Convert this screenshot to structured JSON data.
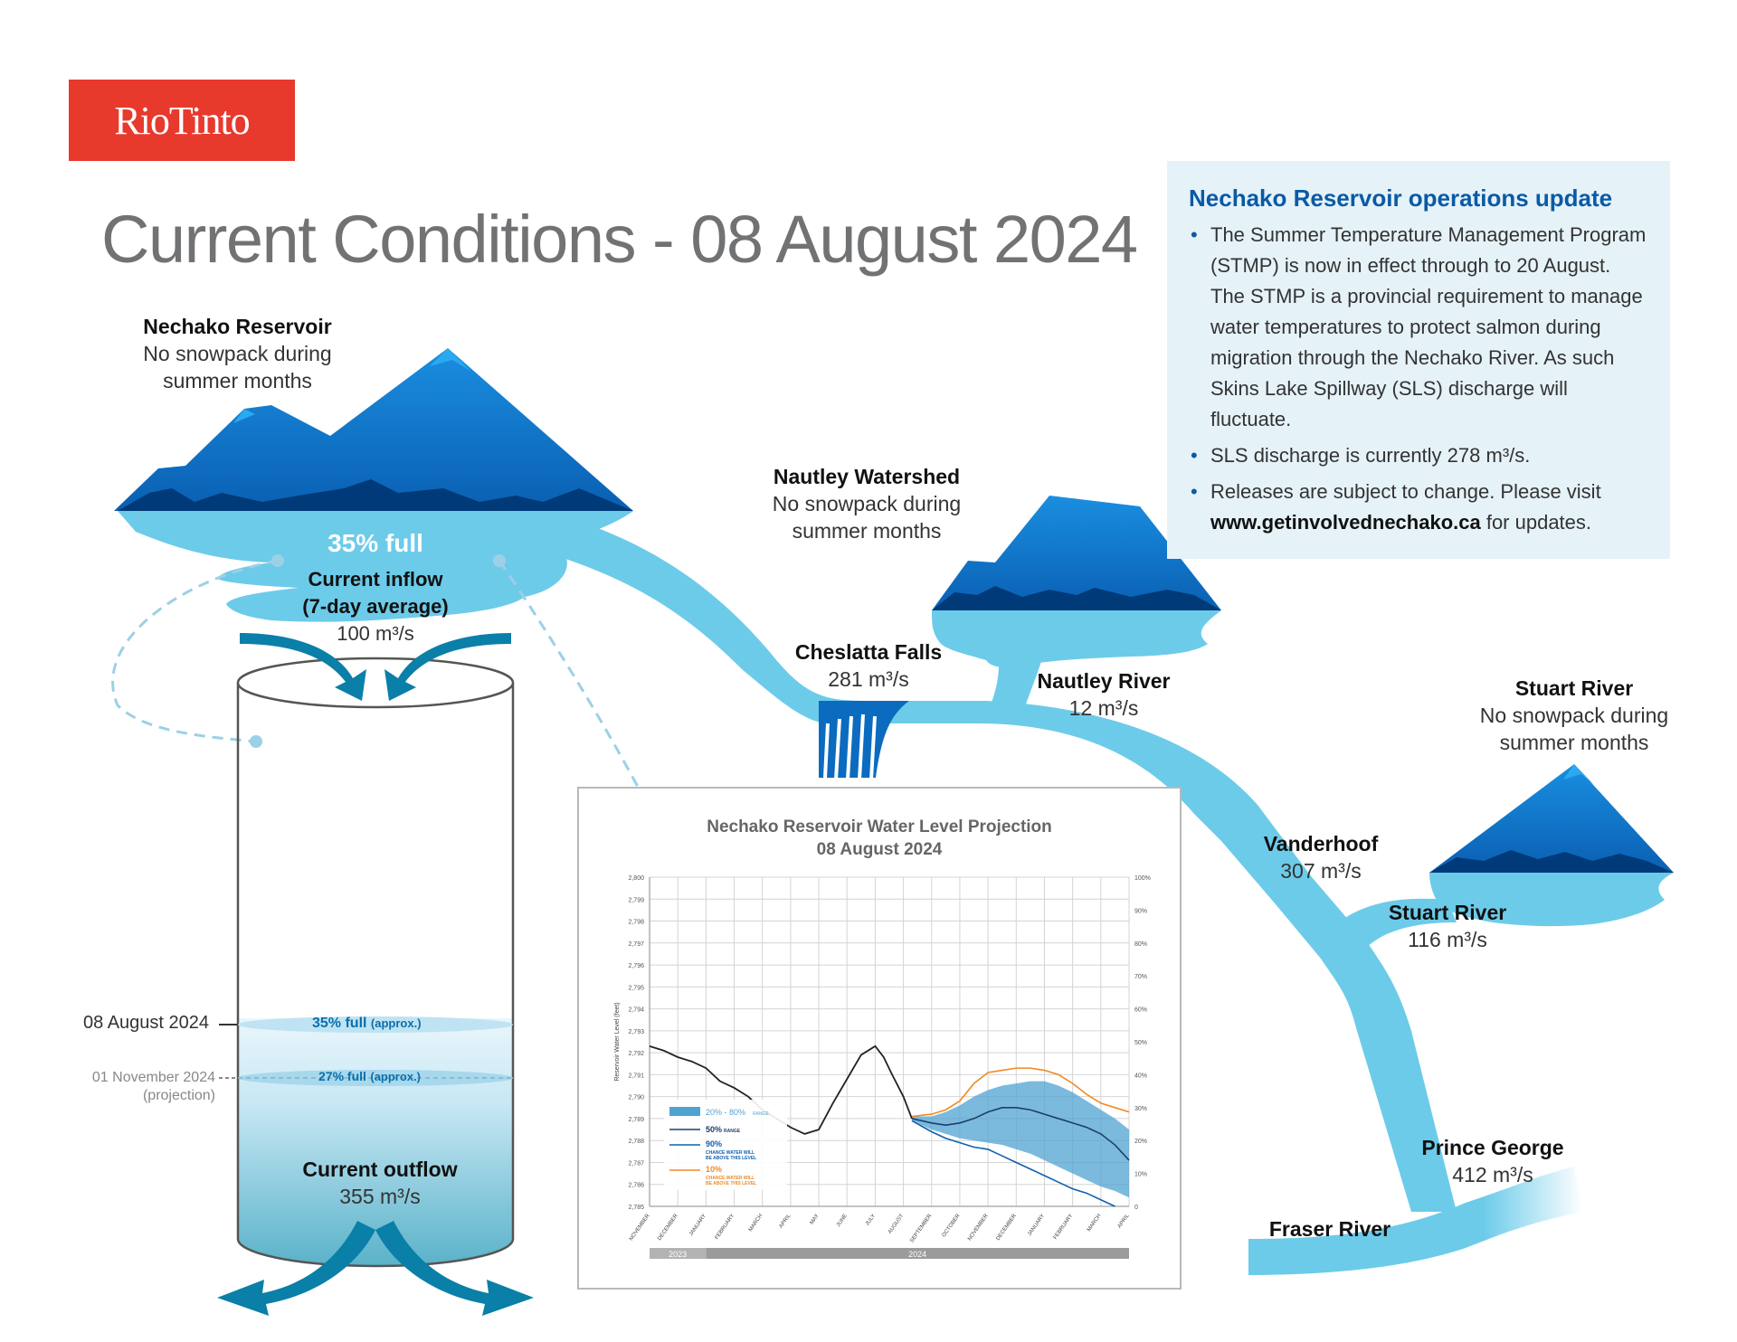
{
  "logo": {
    "text": "RioTinto"
  },
  "title": "Current Conditions - 08 August 2024",
  "nechako_reservoir": {
    "title": "Nechako Reservoir",
    "line1": "No snowpack during",
    "line2": "summer months"
  },
  "reservoir": {
    "percent_full": "35% full",
    "inflow_title": "Current inflow",
    "inflow_sub": "(7-day average)",
    "inflow_value": "100 m³/s",
    "outflow_title": "Current outflow",
    "outflow_value": "355 m³/s",
    "current_date": "08 August 2024",
    "current_level": "35% full",
    "current_level_note": "(approx.)",
    "projection_date": "01 November 2024",
    "projection_note": "(projection)",
    "projection_level": "27% full",
    "projection_level_note": "(approx.)",
    "current_fraction": 0.35,
    "projection_fraction": 0.27
  },
  "nautley_watershed": {
    "title": "Nautley Watershed",
    "line1": "No snowpack during",
    "line2": "summer months"
  },
  "cheslatta_falls": {
    "title": "Cheslatta Falls",
    "value": "281 m³/s"
  },
  "nautley_river": {
    "title": "Nautley River",
    "value": "12 m³/s"
  },
  "stuart_watershed": {
    "title": "Stuart River",
    "line1": "No snowpack during",
    "line2": "summer months"
  },
  "vanderhoof": {
    "title": "Vanderhoof",
    "value": "307 m³/s"
  },
  "stuart_river": {
    "title": "Stuart River",
    "value": "116 m³/s"
  },
  "prince_george": {
    "title": "Prince George",
    "value": "412 m³/s"
  },
  "fraser_river": {
    "title": "Fraser River"
  },
  "info": {
    "heading": "Nechako Reservoir operations update",
    "bullet1": "The Summer Temperature Management Program (STMP) is now in effect through to 20 August. The STMP is a provincial requirement to manage water temperatures to protect salmon during migration through the Nechako River. As such Skins Lake Spillway (SLS) discharge will fluctuate.",
    "bullet2": "SLS discharge is currently 278 m³/s.",
    "bullet3_pre": "Releases are subject to change. Please visit ",
    "bullet3_link": "www.getinvolvednechako.ca",
    "bullet3_post": " for updates."
  },
  "colors": {
    "river": "#6ccbe9",
    "mountain_light": "#0b6bbf",
    "mountain_dark": "#003a78",
    "accent_red": "#e8392d",
    "band": "#4fa3d1",
    "median": "#1c3f6b",
    "p90": "#1060b0",
    "p10": "#f08a22"
  },
  "chart_data": {
    "type": "line",
    "title": "Nechako Reservoir Water Level Projection",
    "subtitle": "08 August 2024",
    "ylabel": "Reservoir Water Level (feet)",
    "ylim": [
      2785,
      2800
    ],
    "y_ticks": [
      "2,785",
      "2,786",
      "2,787",
      "2,788",
      "2,789",
      "2,790",
      "2,791",
      "2,792",
      "2,793",
      "2,794",
      "2,795",
      "2,796",
      "2,797",
      "2,798",
      "2,799",
      "2,800"
    ],
    "y2_ticks": [
      "0",
      "10%",
      "20%",
      "30%",
      "40%",
      "50%",
      "60%",
      "70%",
      "80%",
      "90%",
      "100%"
    ],
    "x_ticks": [
      "NOVEMBER",
      "DECEMBER",
      "JANUARY",
      "FEBRUARY",
      "MARCH",
      "APRIL",
      "MAY",
      "JUNE",
      "JULY",
      "AUGUST",
      "SEPTEMBER",
      "OCTOBER",
      "NOVEMBER",
      "DECEMBER",
      "JANUARY",
      "FEBRUARY",
      "MARCH",
      "APRIL"
    ],
    "year_labels": [
      "2023",
      "2024"
    ],
    "legend": {
      "band": "20% - 80%",
      "band_small": "RANGE",
      "median": "50%",
      "median_small": "RANGE",
      "p90": "90%",
      "p90_small1": "CHANCE WATER WILL",
      "p90_small2": "BE ABOVE THIS LEVEL",
      "p10": "10%",
      "p10_small1": "CHANCE WATER WILL",
      "p10_small2": "BE ABOVE THIS LEVEL"
    },
    "historical": {
      "x": [
        0,
        0.5,
        1,
        1.5,
        2,
        2.5,
        3,
        3.5,
        4,
        4.5,
        5,
        5.5,
        6,
        6.5,
        7,
        7.5,
        8,
        8.3,
        8.6,
        9,
        9.3
      ],
      "y": [
        2792.3,
        2792.1,
        2791.8,
        2791.6,
        2791.3,
        2790.7,
        2790.4,
        2790.0,
        2789.4,
        2789.0,
        2788.6,
        2788.3,
        2788.5,
        2789.7,
        2790.8,
        2791.9,
        2792.3,
        2791.8,
        2791.0,
        2790.0,
        2789.0
      ]
    },
    "median": {
      "x": [
        9.3,
        10,
        10.5,
        11,
        11.5,
        12,
        12.5,
        13,
        13.5,
        14,
        14.5,
        15,
        15.5,
        16,
        16.5,
        17
      ],
      "y": [
        2789.0,
        2788.8,
        2788.7,
        2788.8,
        2789.0,
        2789.3,
        2789.5,
        2789.5,
        2789.4,
        2789.2,
        2789.0,
        2788.8,
        2788.6,
        2788.3,
        2787.8,
        2787.1
      ]
    },
    "band_upper": {
      "x": [
        9.3,
        10,
        10.5,
        11,
        11.5,
        12,
        12.5,
        13,
        13.5,
        14,
        14.5,
        15,
        15.5,
        16,
        16.5,
        17
      ],
      "y": [
        2789.1,
        2789.1,
        2789.3,
        2789.6,
        2790.0,
        2790.3,
        2790.5,
        2790.6,
        2790.7,
        2790.7,
        2790.5,
        2790.2,
        2789.8,
        2789.4,
        2789.0,
        2788.5
      ]
    },
    "band_lower": {
      "x": [
        9.3,
        10,
        10.5,
        11,
        11.5,
        12,
        12.5,
        13,
        13.5,
        14,
        14.5,
        15,
        15.5,
        16,
        16.5,
        17
      ],
      "y": [
        2788.9,
        2788.5,
        2788.3,
        2788.1,
        2788.0,
        2787.9,
        2787.8,
        2787.6,
        2787.4,
        2787.1,
        2786.8,
        2786.5,
        2786.2,
        2785.9,
        2785.7,
        2785.4
      ]
    },
    "p10": {
      "x": [
        9.3,
        10,
        10.5,
        11,
        11.5,
        12,
        12.5,
        13,
        13.5,
        14,
        14.5,
        15,
        15.5,
        16,
        16.5,
        17
      ],
      "y": [
        2789.1,
        2789.2,
        2789.4,
        2789.8,
        2790.6,
        2791.1,
        2791.2,
        2791.3,
        2791.3,
        2791.2,
        2791.0,
        2790.6,
        2790.1,
        2789.7,
        2789.5,
        2789.3
      ]
    },
    "p90": {
      "x": [
        9.3,
        10,
        10.5,
        11,
        11.5,
        12,
        12.5,
        13,
        13.5,
        14,
        14.5,
        15,
        15.5,
        16,
        16.5
      ],
      "y": [
        2788.9,
        2788.4,
        2788.1,
        2787.9,
        2787.7,
        2787.6,
        2787.3,
        2787.0,
        2786.7,
        2786.4,
        2786.1,
        2785.8,
        2785.6,
        2785.3,
        2785.0
      ]
    }
  }
}
